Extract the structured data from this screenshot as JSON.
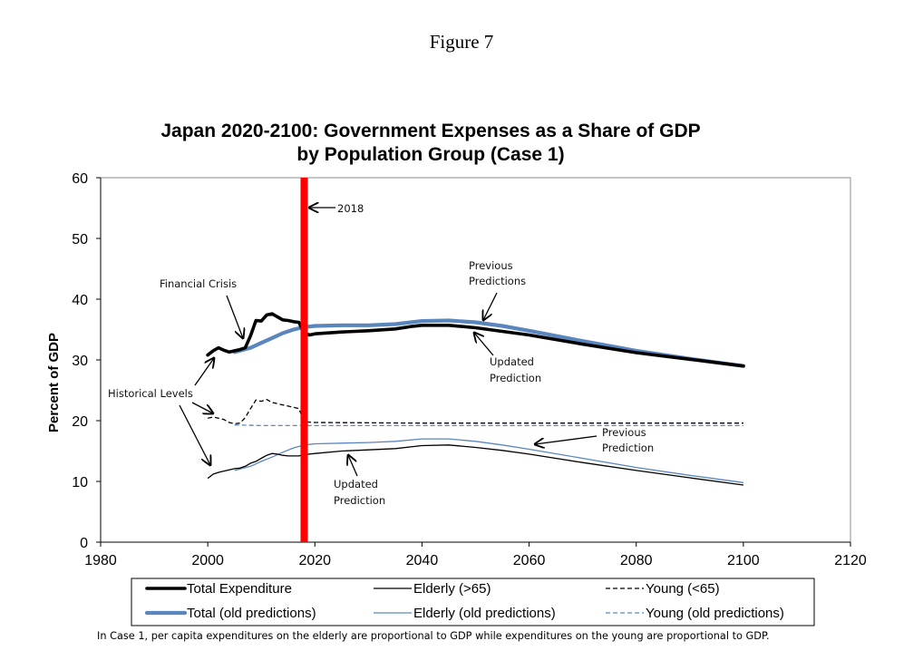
{
  "figure_label": "Figure 7",
  "footnote": "In Case 1, per capita expenditures on the elderly are proportional to GDP while expenditures on the young are proportional to GDP.",
  "colors": {
    "actual": "#000000",
    "old_predictions": "#5b86bd",
    "marker_2018": "#ff0000"
  },
  "chart_data": {
    "type": "line",
    "title": [
      "Japan 2020-2100: Government Expenses as a Share of GDP",
      "by Population Group (Case 1)"
    ],
    "xlabel": "",
    "ylabel": "Percent of GDP",
    "xlim": [
      1980,
      2120
    ],
    "ylim": [
      0,
      60
    ],
    "x_ticks": [
      "1980",
      "2000",
      "2020",
      "2040",
      "2060",
      "2080",
      "2100",
      "2120"
    ],
    "y_ticks": [
      "0",
      "10",
      "20",
      "30",
      "40",
      "50",
      "60"
    ],
    "grid": false,
    "legend_position": "bottom",
    "vertical_marker": {
      "x": 2018,
      "label": "2018"
    },
    "series": [
      {
        "name": "Total Expenditure",
        "style": "thick-solid",
        "color_key": "actual",
        "points": [
          [
            2000,
            30.8
          ],
          [
            2001,
            31.5
          ],
          [
            2002,
            32
          ],
          [
            2003,
            31.6
          ],
          [
            2004,
            31.3
          ],
          [
            2005,
            31.5
          ],
          [
            2006,
            31.7
          ],
          [
            2007,
            32
          ],
          [
            2008,
            34
          ],
          [
            2009,
            36.5
          ],
          [
            2010,
            36.4
          ],
          [
            2011,
            37.4
          ],
          [
            2012,
            37.6
          ],
          [
            2013,
            37.1
          ],
          [
            2014,
            36.6
          ],
          [
            2015,
            36.5
          ],
          [
            2016,
            36.3
          ],
          [
            2017,
            36.2
          ],
          [
            2018,
            34.4
          ],
          [
            2019,
            34.1
          ],
          [
            2020,
            34.3
          ],
          [
            2025,
            34.6
          ],
          [
            2030,
            34.8
          ],
          [
            2035,
            35.1
          ],
          [
            2038,
            35.5
          ],
          [
            2040,
            35.7
          ],
          [
            2045,
            35.7
          ],
          [
            2050,
            35.3
          ],
          [
            2055,
            34.7
          ],
          [
            2060,
            34.1
          ],
          [
            2070,
            32.6
          ],
          [
            2080,
            31.2
          ],
          [
            2090,
            30.1
          ],
          [
            2100,
            29.0
          ]
        ]
      },
      {
        "name": "Elderly (>65)",
        "style": "thin-solid",
        "color_key": "actual",
        "points": [
          [
            2000,
            10.5
          ],
          [
            2001,
            11.2
          ],
          [
            2002,
            11.5
          ],
          [
            2003,
            11.7
          ],
          [
            2004,
            11.9
          ],
          [
            2005,
            12.1
          ],
          [
            2006,
            12.2
          ],
          [
            2007,
            12.5
          ],
          [
            2008,
            13
          ],
          [
            2009,
            13.3
          ],
          [
            2010,
            13.8
          ],
          [
            2011,
            14.3
          ],
          [
            2012,
            14.6
          ],
          [
            2013,
            14.5
          ],
          [
            2014,
            14.3
          ],
          [
            2015,
            14.2
          ],
          [
            2016,
            14.2
          ],
          [
            2017,
            14.2
          ],
          [
            2018,
            14.4
          ],
          [
            2020,
            14.6
          ],
          [
            2025,
            15.0
          ],
          [
            2030,
            15.2
          ],
          [
            2035,
            15.4
          ],
          [
            2040,
            15.9
          ],
          [
            2045,
            16.0
          ],
          [
            2050,
            15.6
          ],
          [
            2055,
            15.1
          ],
          [
            2060,
            14.5
          ],
          [
            2070,
            13.1
          ],
          [
            2080,
            11.8
          ],
          [
            2090,
            10.6
          ],
          [
            2100,
            9.4
          ]
        ]
      },
      {
        "name": "Young (<65)",
        "style": "thin-dashed",
        "color_key": "actual",
        "points": [
          [
            2000,
            20.4
          ],
          [
            2001,
            20.6
          ],
          [
            2002,
            20.4
          ],
          [
            2003,
            20.2
          ],
          [
            2004,
            19.7
          ],
          [
            2005,
            19.5
          ],
          [
            2006,
            19.6
          ],
          [
            2007,
            20.5
          ],
          [
            2008,
            22
          ],
          [
            2009,
            23.4
          ],
          [
            2010,
            23.2
          ],
          [
            2011,
            23.5
          ],
          [
            2012,
            23
          ],
          [
            2013,
            22.8
          ],
          [
            2014,
            22.6
          ],
          [
            2015,
            22.4
          ],
          [
            2016,
            22.2
          ],
          [
            2017,
            22
          ],
          [
            2018,
            19.8
          ],
          [
            2020,
            19.7
          ],
          [
            2040,
            19.6
          ],
          [
            2060,
            19.6
          ],
          [
            2080,
            19.6
          ],
          [
            2100,
            19.6
          ]
        ]
      },
      {
        "name": "Total (old predictions)",
        "style": "thick-solid",
        "color_key": "old_predictions",
        "points": [
          [
            2005,
            31.3
          ],
          [
            2008,
            32
          ],
          [
            2010,
            32.8
          ],
          [
            2012,
            33.6
          ],
          [
            2014,
            34.4
          ],
          [
            2016,
            35
          ],
          [
            2018,
            35.4
          ],
          [
            2020,
            35.6
          ],
          [
            2025,
            35.7
          ],
          [
            2030,
            35.7
          ],
          [
            2035,
            35.9
          ],
          [
            2040,
            36.4
          ],
          [
            2045,
            36.5
          ],
          [
            2050,
            36.2
          ],
          [
            2055,
            35.6
          ],
          [
            2060,
            34.8
          ],
          [
            2070,
            33.1
          ],
          [
            2080,
            31.5
          ],
          [
            2090,
            30.2
          ],
          [
            2100,
            29.0
          ]
        ]
      },
      {
        "name": "Elderly (old predictions)",
        "style": "thin-solid",
        "color_key": "old_predictions",
        "points": [
          [
            2005,
            11.8
          ],
          [
            2008,
            12.5
          ],
          [
            2010,
            13.3
          ],
          [
            2012,
            14
          ],
          [
            2014,
            14.8
          ],
          [
            2016,
            15.5
          ],
          [
            2018,
            16
          ],
          [
            2020,
            16.2
          ],
          [
            2025,
            16.3
          ],
          [
            2030,
            16.4
          ],
          [
            2035,
            16.6
          ],
          [
            2040,
            17.0
          ],
          [
            2045,
            17.0
          ],
          [
            2050,
            16.6
          ],
          [
            2055,
            16.0
          ],
          [
            2060,
            15.3
          ],
          [
            2070,
            13.8
          ],
          [
            2080,
            12.3
          ],
          [
            2090,
            11.0
          ],
          [
            2100,
            9.8
          ]
        ]
      },
      {
        "name": "Young (old predictions)",
        "style": "thin-dashed",
        "color_key": "old_predictions",
        "points": [
          [
            2005,
            19.3
          ],
          [
            2010,
            19.2
          ],
          [
            2020,
            19.2
          ],
          [
            2040,
            19.2
          ],
          [
            2060,
            19.2
          ],
          [
            2080,
            19.2
          ],
          [
            2100,
            19.2
          ]
        ]
      }
    ],
    "annotations": [
      {
        "id": "financial-crisis",
        "lines": [
          "Financial Crisis"
        ]
      },
      {
        "id": "historical-levels",
        "lines": [
          "Historical Levels"
        ]
      },
      {
        "id": "previous-predictions-total",
        "lines": [
          "Previous",
          "Predictions"
        ]
      },
      {
        "id": "updated-prediction-total",
        "lines": [
          "Updated",
          "Prediction"
        ]
      },
      {
        "id": "previous-prediction-elderly",
        "lines": [
          "Previous",
          "Prediction"
        ]
      },
      {
        "id": "updated-prediction-elderly",
        "lines": [
          "Updated",
          "Prediction"
        ]
      }
    ]
  }
}
